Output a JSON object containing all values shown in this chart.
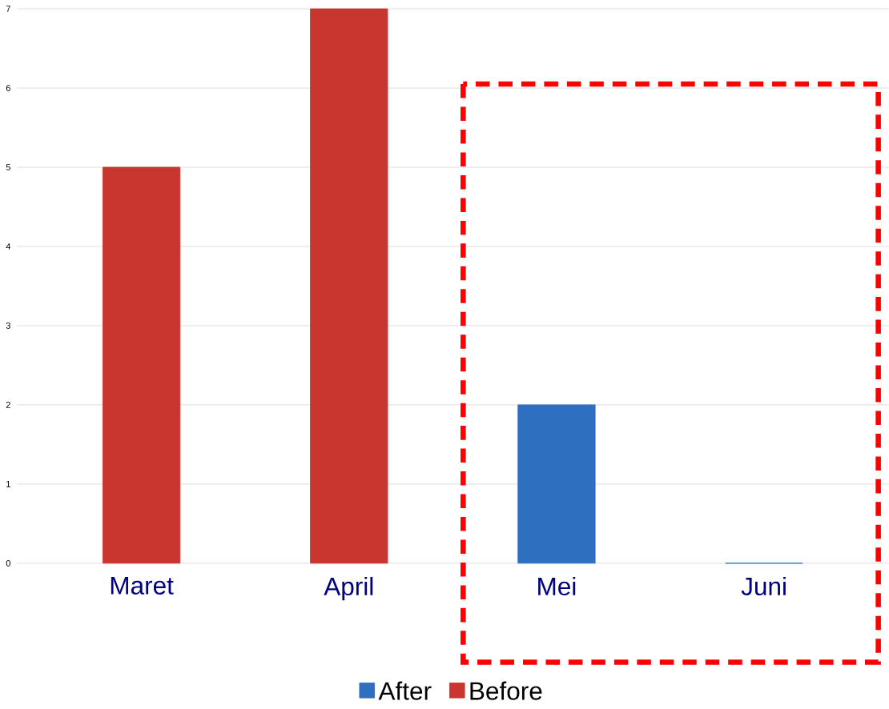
{
  "chart_data": {
    "type": "bar",
    "categories": [
      "Maret",
      "April",
      "Mei",
      "Juni"
    ],
    "series": [
      {
        "name": "After",
        "color": "#2f6fbf",
        "values": [
          null,
          null,
          2,
          0
        ]
      },
      {
        "name": "Before",
        "color": "#c9352f",
        "values": [
          5,
          7,
          null,
          null
        ]
      }
    ],
    "ylim": [
      0,
      7
    ],
    "yticks": [
      0,
      1,
      2,
      3,
      4,
      5,
      6,
      7
    ],
    "grid": "y",
    "legend": "bottom"
  }
}
